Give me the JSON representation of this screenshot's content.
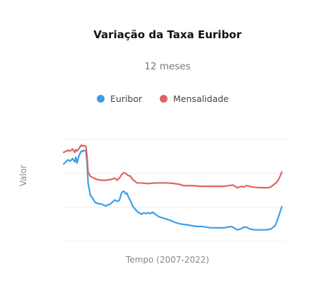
{
  "chart_data": {
    "type": "line",
    "title": "Variação da Taxa Euribor",
    "subtitle": "12 meses",
    "xlabel": "Tempo (2007-2022)",
    "ylabel": "Valor",
    "xlim": [
      0,
      100
    ],
    "ylim": [
      0,
      150
    ],
    "grid": true,
    "legend_position": "top",
    "series": [
      {
        "name": "Euribor",
        "color": "#3b9ee8",
        "x": [
          0,
          2,
          3,
          4,
          5,
          5.5,
          6,
          7,
          8,
          8.5,
          9,
          10,
          10.5,
          11,
          12,
          12.5,
          13,
          14,
          15,
          17,
          19,
          20,
          21,
          23,
          24,
          25,
          26,
          26.5,
          27,
          28,
          28.5,
          29,
          30,
          31,
          33,
          35,
          36,
          37,
          38,
          39,
          40,
          42,
          43,
          44,
          45,
          46,
          48,
          50,
          52,
          54,
          56,
          58,
          60,
          62,
          64,
          66,
          68,
          70,
          72,
          74,
          75,
          76,
          78,
          79,
          80,
          81,
          82,
          84,
          86,
          87,
          89,
          91,
          93,
          95,
          96,
          97,
          98
        ],
        "values": [
          114,
          120,
          118,
          122,
          117,
          124,
          115,
          127,
          133,
          132,
          134,
          133,
          118,
          86,
          68,
          66,
          64,
          58,
          56,
          55,
          52,
          54,
          55,
          61,
          59,
          60,
          71,
          73,
          74,
          70,
          71,
          66,
          60,
          52,
          44,
          40,
          42,
          41,
          42,
          41,
          43,
          38,
          36,
          35,
          34,
          33,
          31,
          28,
          26,
          25,
          24,
          23,
          22,
          22,
          21,
          20,
          20,
          20,
          20,
          21,
          22,
          21,
          17,
          18,
          19,
          21,
          21,
          18,
          17,
          17,
          17,
          17,
          18,
          23,
          31,
          41,
          51
        ]
      },
      {
        "name": "Mensalidade",
        "color": "#e06363",
        "x": [
          0,
          2,
          3,
          4,
          5,
          5.5,
          6,
          7,
          8,
          8.5,
          9,
          10,
          10.5,
          11,
          12,
          12.5,
          13,
          15,
          17,
          19,
          21,
          23,
          24,
          25,
          26,
          27,
          28,
          29,
          30,
          31,
          33,
          35,
          38,
          41,
          44,
          47,
          50,
          52,
          54,
          56,
          58,
          62,
          66,
          70,
          72,
          74,
          76,
          77,
          78,
          79,
          80,
          81,
          82,
          85,
          88,
          90,
          92,
          93,
          95,
          96,
          97,
          98
        ],
        "values": [
          131,
          134,
          133,
          136,
          131,
          135,
          133,
          137,
          142,
          140,
          141,
          140,
          126,
          102,
          96,
          95,
          94,
          91,
          90,
          90,
          91,
          93,
          90,
          93,
          98,
          101,
          100,
          97,
          96,
          91,
          86,
          86,
          85,
          86,
          86,
          86,
          85,
          84,
          82,
          82,
          82,
          81,
          81,
          81,
          81,
          82,
          83,
          81,
          79,
          80,
          81,
          80,
          82,
          80,
          79,
          79,
          79,
          80,
          85,
          88,
          94,
          102
        ]
      }
    ]
  }
}
